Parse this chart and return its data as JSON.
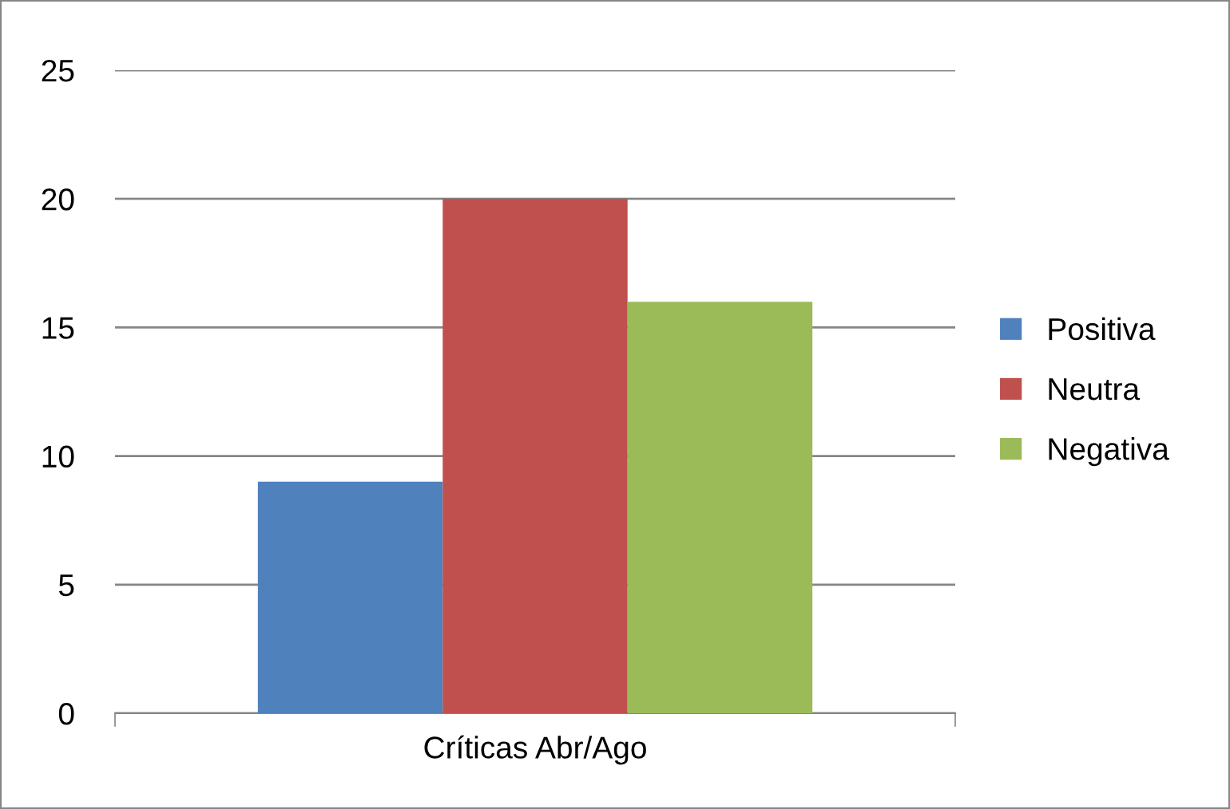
{
  "chart_data": {
    "type": "bar",
    "categories": [
      "Críticas Abr/Ago"
    ],
    "series": [
      {
        "name": "Positiva",
        "color": "#4f81bd",
        "values": [
          9
        ]
      },
      {
        "name": "Neutra",
        "color": "#c0504d",
        "values": [
          20
        ]
      },
      {
        "name": "Negativa",
        "color": "#9bbb59",
        "values": [
          16
        ]
      }
    ],
    "ylim": [
      0,
      25
    ],
    "yticks": [
      0,
      5,
      10,
      15,
      20,
      25
    ],
    "grid": "y",
    "legend": "right"
  }
}
